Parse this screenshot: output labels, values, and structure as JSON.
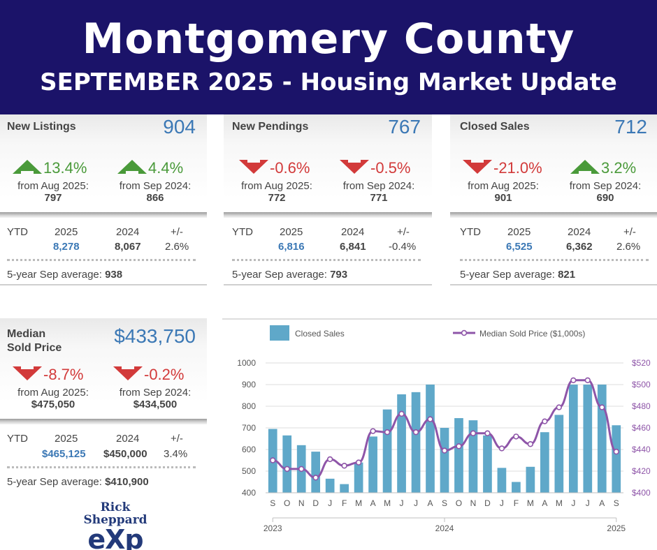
{
  "banner": {
    "title": "Montgomery County",
    "subtitle": "SEPTEMBER 2025 - Housing Market Update"
  },
  "panels": {
    "new_listings": {
      "label": "New Listings",
      "value": "904",
      "mom_change": "13.4%",
      "mom_direction": "up",
      "mom_from": "from Aug 2025:",
      "mom_prev": "797",
      "yoy_change": "4.4%",
      "yoy_direction": "up",
      "yoy_from": "from Sep 2024:",
      "yoy_prev": "866",
      "ytd_label": "YTD",
      "ytd_year_current": "2025",
      "ytd_year_prior": "2024",
      "ytd_diff_label": "+/-",
      "ytd_current": "8,278",
      "ytd_prior": "8,067",
      "ytd_diff": "2.6%",
      "avg_label": "5-year Sep average:",
      "avg_value": "938"
    },
    "new_pendings": {
      "label": "New Pendings",
      "value": "767",
      "mom_change": "-0.6%",
      "mom_direction": "down",
      "mom_from": "from Aug 2025:",
      "mom_prev": "772",
      "yoy_change": "-0.5%",
      "yoy_direction": "down",
      "yoy_from": "from Sep 2024:",
      "yoy_prev": "771",
      "ytd_label": "YTD",
      "ytd_year_current": "2025",
      "ytd_year_prior": "2024",
      "ytd_diff_label": "+/-",
      "ytd_current": "6,816",
      "ytd_prior": "6,841",
      "ytd_diff": "-0.4%",
      "avg_label": "5-year Sep average:",
      "avg_value": "793"
    },
    "closed_sales": {
      "label": "Closed Sales",
      "value": "712",
      "mom_change": "-21.0%",
      "mom_direction": "down",
      "mom_from": "from Aug 2025:",
      "mom_prev": "901",
      "yoy_change": "3.2%",
      "yoy_direction": "up",
      "yoy_from": "from Sep 2024:",
      "yoy_prev": "690",
      "ytd_label": "YTD",
      "ytd_year_current": "2025",
      "ytd_year_prior": "2024",
      "ytd_diff_label": "+/-",
      "ytd_current": "6,525",
      "ytd_prior": "6,362",
      "ytd_diff": "2.6%",
      "avg_label": "5-year Sep average:",
      "avg_value": "821"
    },
    "median_price": {
      "label_line1": "Median",
      "label_line2": "Sold Price",
      "value": "$433,750",
      "mom_change": "-8.7%",
      "mom_direction": "down",
      "mom_from": "from Aug 2025:",
      "mom_prev": "$475,050",
      "yoy_change": "-0.2%",
      "yoy_direction": "down",
      "yoy_from": "from Sep 2024:",
      "yoy_prev": "$434,500",
      "ytd_label": "YTD",
      "ytd_year_current": "2025",
      "ytd_year_prior": "2024",
      "ytd_diff_label": "+/-",
      "ytd_current": "$465,125",
      "ytd_prior": "$450,000",
      "ytd_diff": "3.4%",
      "avg_label": "5-year Sep average:",
      "avg_value": "$410,900"
    }
  },
  "colors": {
    "banner": "#1b1369",
    "bar": "#5fa8c9",
    "line": "#8e55a8",
    "up": "#4a9a3a",
    "down": "#d23a3a",
    "value": "#3b78b5"
  },
  "chart_data": {
    "type": "bar",
    "title": "",
    "categories": [
      "S",
      "O",
      "N",
      "D",
      "J",
      "F",
      "M",
      "A",
      "M",
      "J",
      "J",
      "A",
      "S",
      "O",
      "N",
      "D",
      "J",
      "F",
      "M",
      "A",
      "M",
      "J",
      "J",
      "A",
      "S"
    ],
    "year_labels": [
      {
        "label": "2023",
        "index": 0
      },
      {
        "label": "2024",
        "index": 12
      },
      {
        "label": "2025",
        "index": 24
      }
    ],
    "series": [
      {
        "name": "Closed Sales",
        "kind": "bar",
        "axis": "left",
        "values": [
          695,
          665,
          620,
          590,
          465,
          440,
          540,
          660,
          785,
          855,
          865,
          900,
          700,
          745,
          735,
          665,
          515,
          450,
          520,
          680,
          760,
          900,
          900,
          900,
          712
        ]
      },
      {
        "name": "Median Sold Price ($1,000s)",
        "kind": "line",
        "axis": "right",
        "values": [
          430,
          422,
          422,
          414,
          431,
          425,
          428,
          457,
          456,
          473,
          456,
          468,
          439,
          443,
          455,
          455,
          441,
          452,
          445,
          466,
          479,
          504,
          504,
          479,
          438
        ]
      }
    ],
    "ylim_left": [
      400,
      1000
    ],
    "yticks_left": [
      400,
      500,
      600,
      700,
      800,
      900,
      1000
    ],
    "ylim_right": [
      400,
      520
    ],
    "yticks_right": [
      "$400",
      "$420",
      "$440",
      "$460",
      "$480",
      "$500",
      "$520"
    ],
    "grid": true,
    "legend": "top"
  }
}
